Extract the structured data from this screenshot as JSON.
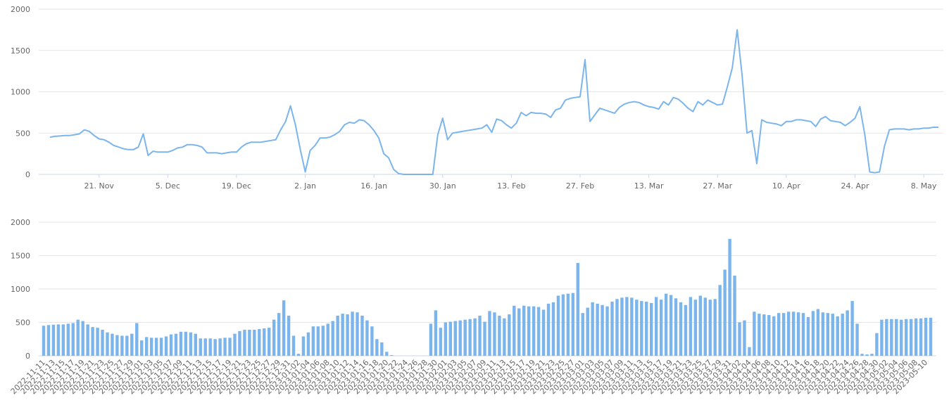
{
  "chart_data": [
    {
      "type": "line",
      "color": "#7cb5ec",
      "grid": true,
      "categories": [
        "2022-11-11",
        null,
        "2022-11-13",
        null,
        "2022-11-15",
        null,
        "2022-11-17",
        null,
        "2022-11-19",
        null,
        "2022-11-21",
        null,
        "2022-11-23",
        null,
        "2022-11-25",
        null,
        "2022-11-27",
        null,
        "2022-11-29",
        null,
        "2022-12-01",
        null,
        "2022-12-03",
        null,
        "2022-12-05",
        null,
        "2022-12-07",
        null,
        "2022-12-09",
        null,
        "2022-12-11",
        null,
        "2022-12-13",
        null,
        "2022-12-15",
        null,
        "2022-12-17",
        null,
        "2022-12-19",
        null,
        "2022-12-21",
        null,
        "2022-12-23",
        null,
        "2022-12-25",
        null,
        "2022-12-27",
        null,
        "2022-12-29",
        null,
        "2022-12-31",
        null,
        "2023-01-02",
        null,
        "2023-01-04",
        null,
        "2023-01-06",
        null,
        "2023-01-08",
        null,
        "2023-01-10",
        null,
        "2023-01-12",
        null,
        "2023-01-14",
        null,
        "2023-01-16",
        null,
        "2023-01-18",
        null,
        "2023-01-20",
        null,
        "2023-01-22",
        null,
        "2023-01-24",
        null,
        "2023-01-26",
        null,
        "2023-01-28",
        null,
        "2023-01-30",
        null,
        "2023-02-01",
        null,
        "2023-02-03",
        null,
        "2023-02-05",
        null,
        "2023-02-07",
        null,
        "2023-02-09",
        null,
        "2023-02-11",
        null,
        "2023-02-13",
        null,
        "2023-02-15",
        null,
        "2023-02-17",
        null,
        "2023-02-19",
        null,
        "2023-02-21",
        null,
        "2023-02-23",
        null,
        "2023-02-25",
        null,
        "2023-02-27",
        null,
        "2023-03-01",
        null,
        "2023-03-03",
        null,
        "2023-03-05",
        null,
        "2023-03-07",
        null,
        "2023-03-09",
        null,
        "2023-03-11",
        null,
        "2023-03-13",
        null,
        "2023-03-15",
        null,
        "2023-03-17",
        null,
        "2023-03-19",
        null,
        "2023-03-21",
        null,
        "2023-03-23",
        null,
        "2023-03-25",
        null,
        "2023-03-27",
        null,
        "2023-03-29",
        null,
        "2023-03-31",
        null,
        "2023-04-02",
        null,
        "2023-04-04",
        null,
        "2023-04-06",
        null,
        "2023-04-08",
        null,
        "2023-04-10",
        null,
        "2023-04-12",
        null,
        "2023-04-14",
        null,
        "2023-04-16",
        null,
        "2023-04-18",
        null,
        "2023-04-20",
        null,
        "2023-04-22",
        null,
        "2023-04-24",
        null,
        "2023-04-26",
        null,
        "2023-04-28",
        null,
        "2023-04-30",
        null,
        "2023-05-02",
        null,
        "2023-05-04",
        null,
        "2023-05-06",
        null,
        "2023-05-08",
        null,
        "2023-05-10",
        null
      ],
      "values": [
        450,
        460,
        465,
        470,
        470,
        480,
        490,
        540,
        520,
        470,
        430,
        420,
        390,
        350,
        330,
        310,
        300,
        300,
        330,
        490,
        230,
        280,
        270,
        270,
        270,
        290,
        320,
        330,
        360,
        360,
        350,
        330,
        260,
        260,
        260,
        250,
        260,
        270,
        270,
        330,
        370,
        390,
        390,
        390,
        400,
        410,
        420,
        540,
        640,
        830,
        600,
        300,
        30,
        290,
        350,
        440,
        440,
        450,
        480,
        520,
        600,
        630,
        620,
        660,
        650,
        600,
        530,
        440,
        250,
        200,
        60,
        10,
        0,
        0,
        0,
        0,
        0,
        0,
        0,
        480,
        680,
        420,
        500,
        510,
        520,
        530,
        540,
        550,
        560,
        600,
        510,
        670,
        650,
        600,
        560,
        620,
        750,
        710,
        750,
        740,
        740,
        730,
        690,
        780,
        800,
        900,
        920,
        930,
        940,
        1390,
        640,
        720,
        800,
        780,
        760,
        740,
        810,
        850,
        870,
        880,
        870,
        840,
        820,
        810,
        790,
        880,
        840,
        930,
        910,
        860,
        800,
        760,
        880,
        840,
        900,
        870,
        840,
        850,
        1060,
        1290,
        1750,
        1200,
        500,
        530,
        130,
        660,
        630,
        620,
        610,
        590,
        640,
        640,
        660,
        660,
        650,
        640,
        580,
        670,
        700,
        650,
        640,
        630,
        590,
        630,
        680,
        820,
        480,
        30,
        20,
        30,
        340,
        540,
        550,
        550,
        550,
        540,
        550,
        550,
        560,
        560,
        570,
        570
      ],
      "ylim": [
        0,
        2000
      ],
      "yticks": [
        0,
        500,
        1000,
        1500,
        2000
      ],
      "xticks": [
        {
          "value": "2022-11-21",
          "label": "21. Nov"
        },
        {
          "value": "2022-12-05",
          "label": "5. Dec"
        },
        {
          "value": "2022-12-19",
          "label": "19. Dec"
        },
        {
          "value": "2023-01-02",
          "label": "2. Jan"
        },
        {
          "value": "2023-01-16",
          "label": "16. Jan"
        },
        {
          "value": "2023-01-30",
          "label": "30. Jan"
        },
        {
          "value": "2023-02-13",
          "label": "13. Feb"
        },
        {
          "value": "2023-02-27",
          "label": "27. Feb"
        },
        {
          "value": "2023-03-13",
          "label": "13. Mar"
        },
        {
          "value": "2023-03-27",
          "label": "27. Mar"
        },
        {
          "value": "2023-04-10",
          "label": "10. Apr"
        },
        {
          "value": "2023-04-24",
          "label": "24. Apr"
        },
        {
          "value": "2023-05-08",
          "label": "8. May"
        }
      ]
    },
    {
      "type": "bar",
      "color": "#7cb5ec",
      "grid": true,
      "categories": [
        "2022-11-11",
        null,
        "2022-11-13",
        null,
        "2022-11-15",
        null,
        "2022-11-17",
        null,
        "2022-11-19",
        null,
        "2022-11-21",
        null,
        "2022-11-23",
        null,
        "2022-11-25",
        null,
        "2022-11-27",
        null,
        "2022-11-29",
        null,
        "2022-12-01",
        null,
        "2022-12-03",
        null,
        "2022-12-05",
        null,
        "2022-12-07",
        null,
        "2022-12-09",
        null,
        "2022-12-11",
        null,
        "2022-12-13",
        null,
        "2022-12-15",
        null,
        "2022-12-17",
        null,
        "2022-12-19",
        null,
        "2022-12-21",
        null,
        "2022-12-23",
        null,
        "2022-12-25",
        null,
        "2022-12-27",
        null,
        "2022-12-29",
        null,
        "2022-12-31",
        null,
        "2023-01-02",
        null,
        "2023-01-04",
        null,
        "2023-01-06",
        null,
        "2023-01-08",
        null,
        "2023-01-10",
        null,
        "2023-01-12",
        null,
        "2023-01-14",
        null,
        "2023-01-16",
        null,
        "2023-01-18",
        null,
        "2023-01-20",
        null,
        "2023-01-22",
        null,
        "2023-01-24",
        null,
        "2023-01-26",
        null,
        "2023-01-28",
        null,
        "2023-01-30",
        null,
        "2023-02-01",
        null,
        "2023-02-03",
        null,
        "2023-02-05",
        null,
        "2023-02-07",
        null,
        "2023-02-09",
        null,
        "2023-02-11",
        null,
        "2023-02-13",
        null,
        "2023-02-15",
        null,
        "2023-02-17",
        null,
        "2023-02-19",
        null,
        "2023-02-21",
        null,
        "2023-02-23",
        null,
        "2023-02-25",
        null,
        "2023-02-27",
        null,
        "2023-03-01",
        null,
        "2023-03-03",
        null,
        "2023-03-05",
        null,
        "2023-03-07",
        null,
        "2023-03-09",
        null,
        "2023-03-11",
        null,
        "2023-03-13",
        null,
        "2023-03-15",
        null,
        "2023-03-17",
        null,
        "2023-03-19",
        null,
        "2023-03-21",
        null,
        "2023-03-23",
        null,
        "2023-03-25",
        null,
        "2023-03-27",
        null,
        "2023-03-29",
        null,
        "2023-03-31",
        null,
        "2023-04-02",
        null,
        "2023-04-04",
        null,
        "2023-04-06",
        null,
        "2023-04-08",
        null,
        "2023-04-10",
        null,
        "2023-04-12",
        null,
        "2023-04-14",
        null,
        "2023-04-16",
        null,
        "2023-04-18",
        null,
        "2023-04-20",
        null,
        "2023-04-22",
        null,
        "2023-04-24",
        null,
        "2023-04-26",
        null,
        "2023-04-28",
        null,
        "2023-04-30",
        null,
        "2023-05-02",
        null,
        "2023-05-04",
        null,
        "2023-05-06",
        null,
        "2023-05-08",
        null,
        "2023-05-10",
        null
      ],
      "values": [
        450,
        460,
        465,
        470,
        470,
        480,
        490,
        540,
        520,
        470,
        430,
        420,
        390,
        350,
        330,
        310,
        300,
        300,
        330,
        490,
        230,
        280,
        270,
        270,
        270,
        290,
        320,
        330,
        360,
        360,
        350,
        330,
        260,
        260,
        260,
        250,
        260,
        270,
        270,
        330,
        370,
        390,
        390,
        390,
        400,
        410,
        420,
        540,
        640,
        830,
        600,
        300,
        30,
        290,
        350,
        440,
        440,
        450,
        480,
        520,
        600,
        630,
        620,
        660,
        650,
        600,
        530,
        440,
        250,
        200,
        60,
        10,
        0,
        0,
        0,
        0,
        0,
        0,
        0,
        480,
        680,
        420,
        500,
        510,
        520,
        530,
        540,
        550,
        560,
        600,
        510,
        670,
        650,
        600,
        560,
        620,
        750,
        710,
        750,
        740,
        740,
        730,
        690,
        780,
        800,
        900,
        920,
        930,
        940,
        1390,
        640,
        720,
        800,
        780,
        760,
        740,
        810,
        850,
        870,
        880,
        870,
        840,
        820,
        810,
        790,
        880,
        840,
        930,
        910,
        860,
        800,
        760,
        880,
        840,
        900,
        870,
        840,
        850,
        1060,
        1290,
        1750,
        1200,
        500,
        530,
        130,
        660,
        630,
        620,
        610,
        590,
        640,
        640,
        660,
        660,
        650,
        640,
        580,
        670,
        700,
        650,
        640,
        630,
        590,
        630,
        680,
        820,
        480,
        30,
        20,
        30,
        340,
        540,
        550,
        550,
        550,
        540,
        550,
        550,
        560,
        560,
        570,
        570
      ],
      "ylim": [
        0,
        2000
      ],
      "yticks": [
        0,
        500,
        1000,
        1500,
        2000
      ]
    }
  ]
}
